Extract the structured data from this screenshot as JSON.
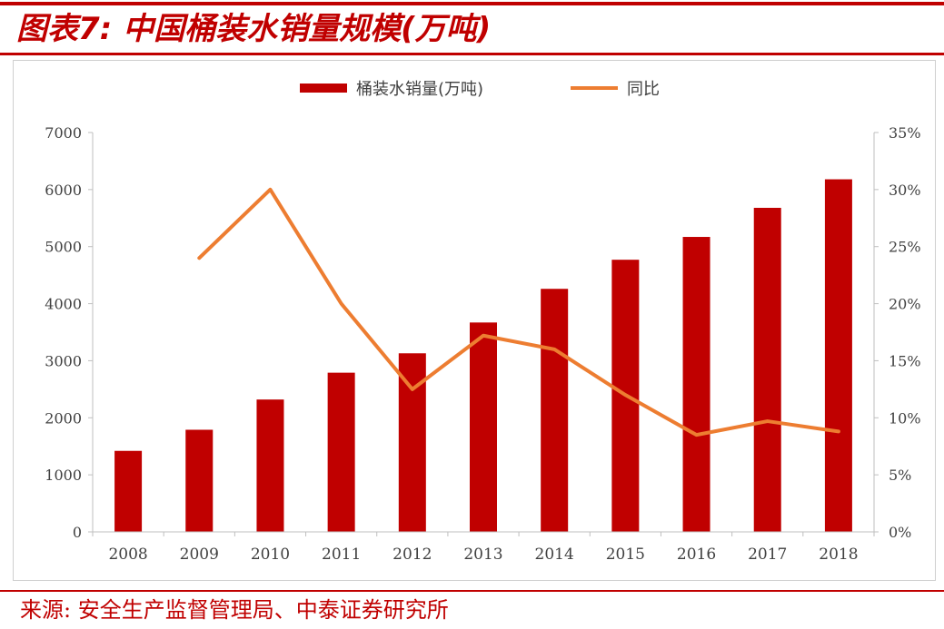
{
  "figure": {
    "title": "图表7: 中国桶装水销量规模(万吨)",
    "source": "来源: 安全生产监督管理局、中泰证券研究所"
  },
  "colors": {
    "accent": "#c00000",
    "bar": "#c00000",
    "line": "#ed7d31",
    "axis": "#bfbfbf",
    "text": "#404040"
  },
  "chart_data": {
    "type": "bar",
    "categories": [
      "2008",
      "2009",
      "2010",
      "2011",
      "2012",
      "2013",
      "2014",
      "2015",
      "2016",
      "2017",
      "2018"
    ],
    "series": [
      {
        "name": "桶装水销量(万吨)",
        "type": "bar",
        "axis": "left",
        "values": [
          1420,
          1790,
          2320,
          2790,
          3130,
          3670,
          4260,
          4770,
          5170,
          5680,
          6180
        ]
      },
      {
        "name": "同比",
        "type": "line",
        "axis": "right",
        "values": [
          null,
          0.24,
          0.3,
          0.2,
          0.125,
          0.172,
          0.16,
          0.12,
          0.085,
          0.097,
          0.088
        ]
      }
    ],
    "y_left": {
      "ylim": [
        0,
        7000
      ],
      "ticks": [
        "0",
        "1000",
        "2000",
        "3000",
        "4000",
        "5000",
        "6000",
        "7000"
      ]
    },
    "y_right": {
      "ylim": [
        0,
        0.35
      ],
      "ticks": [
        "0%",
        "5%",
        "10%",
        "15%",
        "20%",
        "25%",
        "30%",
        "35%"
      ]
    },
    "legend": {
      "position": "top-center",
      "entries": [
        "桶装水销量(万吨)",
        "同比"
      ]
    },
    "grid": false
  }
}
